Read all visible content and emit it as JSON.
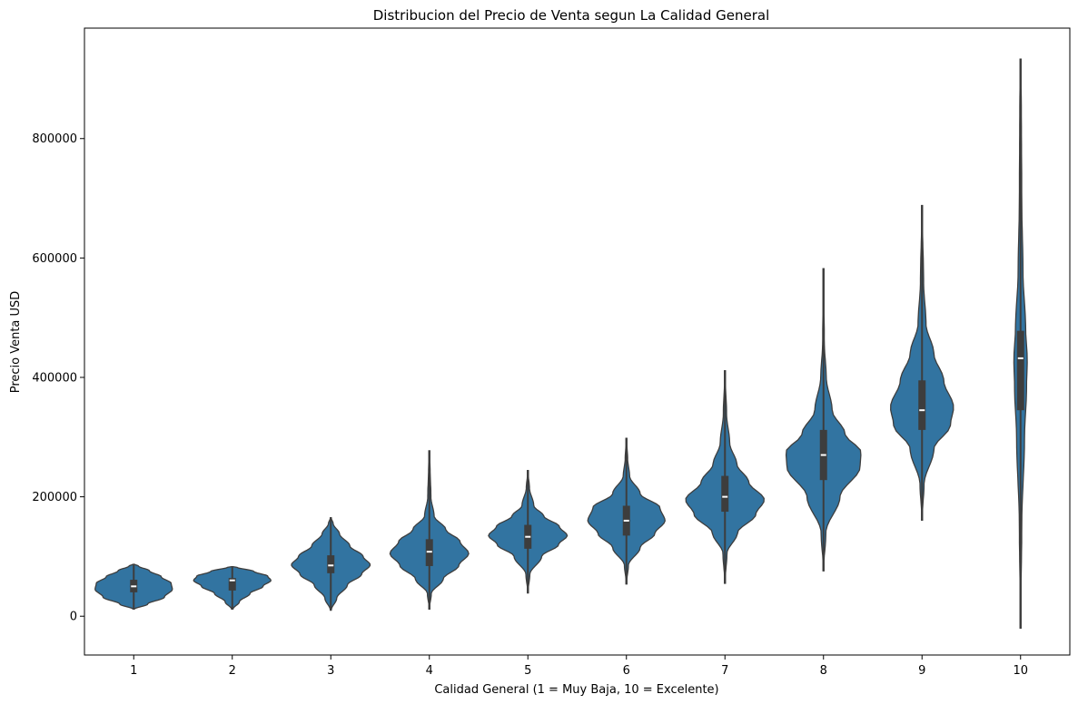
{
  "chart_data": {
    "type": "violin",
    "title": "Distribucion del Precio de Venta segun La Calidad General",
    "xlabel": "Calidad General (1 = Muy Baja, 10 = Excelente)",
    "ylabel": "Precio Venta USD",
    "ylim": [
      -65000,
      985000
    ],
    "yticks": [
      0,
      200000,
      400000,
      600000,
      800000
    ],
    "ytick_labels": [
      "0",
      "200000",
      "400000",
      "600000",
      "800000"
    ],
    "categories": [
      "1",
      "2",
      "3",
      "4",
      "5",
      "6",
      "7",
      "8",
      "9",
      "10"
    ],
    "color": "#3274a1",
    "box_color": "#3d3d3d",
    "median_color": "#ffffff",
    "grid": false,
    "violins": [
      {
        "category": "1",
        "min": 12000,
        "max": 87000,
        "q1": 40000,
        "median": 50000,
        "q3": 61000,
        "profile": [
          [
            12000,
            0.02
          ],
          [
            20000,
            0.35
          ],
          [
            32000,
            0.78
          ],
          [
            45000,
            0.98
          ],
          [
            55000,
            0.95
          ],
          [
            66000,
            0.7
          ],
          [
            76000,
            0.4
          ],
          [
            84000,
            0.12
          ],
          [
            87000,
            0.02
          ]
        ]
      },
      {
        "category": "2",
        "min": 12000,
        "max": 83000,
        "q1": 43000,
        "median": 60000,
        "q3": 64000,
        "profile": [
          [
            12000,
            0.02
          ],
          [
            24000,
            0.18
          ],
          [
            38000,
            0.45
          ],
          [
            50000,
            0.78
          ],
          [
            60000,
            0.98
          ],
          [
            67000,
            0.9
          ],
          [
            75000,
            0.55
          ],
          [
            82000,
            0.12
          ],
          [
            83000,
            0.02
          ]
        ]
      },
      {
        "category": "3",
        "min": 10000,
        "max": 165000,
        "q1": 72000,
        "median": 85000,
        "q3": 102000,
        "profile": [
          [
            10000,
            0.01
          ],
          [
            30000,
            0.15
          ],
          [
            52000,
            0.42
          ],
          [
            70000,
            0.78
          ],
          [
            86000,
            1.0
          ],
          [
            100000,
            0.82
          ],
          [
            118000,
            0.48
          ],
          [
            138000,
            0.22
          ],
          [
            155000,
            0.06
          ],
          [
            165000,
            0.01
          ]
        ]
      },
      {
        "category": "4",
        "min": 12000,
        "max": 277000,
        "q1": 84000,
        "median": 108000,
        "q3": 129000,
        "profile": [
          [
            12000,
            0.0
          ],
          [
            38000,
            0.05
          ],
          [
            62000,
            0.35
          ],
          [
            85000,
            0.75
          ],
          [
            105000,
            1.0
          ],
          [
            125000,
            0.78
          ],
          [
            145000,
            0.42
          ],
          [
            168000,
            0.12
          ],
          [
            200000,
            0.04
          ],
          [
            245000,
            0.02
          ],
          [
            277000,
            0.0
          ]
        ]
      },
      {
        "category": "5",
        "min": 39000,
        "max": 244000,
        "q1": 113000,
        "median": 133000,
        "q3": 153000,
        "profile": [
          [
            39000,
            0.0
          ],
          [
            70000,
            0.05
          ],
          [
            100000,
            0.35
          ],
          [
            120000,
            0.78
          ],
          [
            135000,
            1.0
          ],
          [
            150000,
            0.8
          ],
          [
            168000,
            0.4
          ],
          [
            185000,
            0.15
          ],
          [
            215000,
            0.04
          ],
          [
            244000,
            0.0
          ]
        ]
      },
      {
        "category": "6",
        "min": 54000,
        "max": 298000,
        "q1": 135000,
        "median": 160000,
        "q3": 185000,
        "profile": [
          [
            54000,
            0.0
          ],
          [
            85000,
            0.05
          ],
          [
            115000,
            0.35
          ],
          [
            138000,
            0.72
          ],
          [
            160000,
            0.98
          ],
          [
            182000,
            0.85
          ],
          [
            205000,
            0.35
          ],
          [
            235000,
            0.08
          ],
          [
            265000,
            0.03
          ],
          [
            298000,
            0.0
          ]
        ]
      },
      {
        "category": "7",
        "min": 55000,
        "max": 411000,
        "q1": 175000,
        "median": 200000,
        "q3": 235000,
        "profile": [
          [
            55000,
            0.0
          ],
          [
            105000,
            0.05
          ],
          [
            140000,
            0.32
          ],
          [
            170000,
            0.78
          ],
          [
            195000,
            1.0
          ],
          [
            225000,
            0.6
          ],
          [
            255000,
            0.3
          ],
          [
            290000,
            0.12
          ],
          [
            340000,
            0.04
          ],
          [
            411000,
            0.0
          ]
        ]
      },
      {
        "category": "8",
        "min": 76000,
        "max": 582000,
        "q1": 228000,
        "median": 270000,
        "q3": 312000,
        "profile": [
          [
            76000,
            0.0
          ],
          [
            140000,
            0.06
          ],
          [
            200000,
            0.42
          ],
          [
            250000,
            0.93
          ],
          [
            275000,
            0.95
          ],
          [
            305000,
            0.55
          ],
          [
            345000,
            0.22
          ],
          [
            400000,
            0.07
          ],
          [
            460000,
            0.02
          ],
          [
            582000,
            0.0
          ]
        ]
      },
      {
        "category": "9",
        "min": 161000,
        "max": 688000,
        "q1": 312000,
        "median": 345000,
        "q3": 395000,
        "profile": [
          [
            161000,
            0.0
          ],
          [
            220000,
            0.05
          ],
          [
            280000,
            0.3
          ],
          [
            320000,
            0.72
          ],
          [
            350000,
            0.8
          ],
          [
            395000,
            0.55
          ],
          [
            440000,
            0.3
          ],
          [
            490000,
            0.1
          ],
          [
            560000,
            0.04
          ],
          [
            688000,
            0.0
          ]
        ]
      },
      {
        "category": "10",
        "min": -20000,
        "max": 933000,
        "q1": 345000,
        "median": 432000,
        "q3": 478000,
        "profile": [
          [
            -20000,
            0.0
          ],
          [
            150000,
            0.03
          ],
          [
            300000,
            0.1
          ],
          [
            380000,
            0.15
          ],
          [
            430000,
            0.17
          ],
          [
            480000,
            0.13
          ],
          [
            580000,
            0.06
          ],
          [
            700000,
            0.03
          ],
          [
            850000,
            0.02
          ],
          [
            933000,
            0.0
          ]
        ]
      }
    ]
  }
}
